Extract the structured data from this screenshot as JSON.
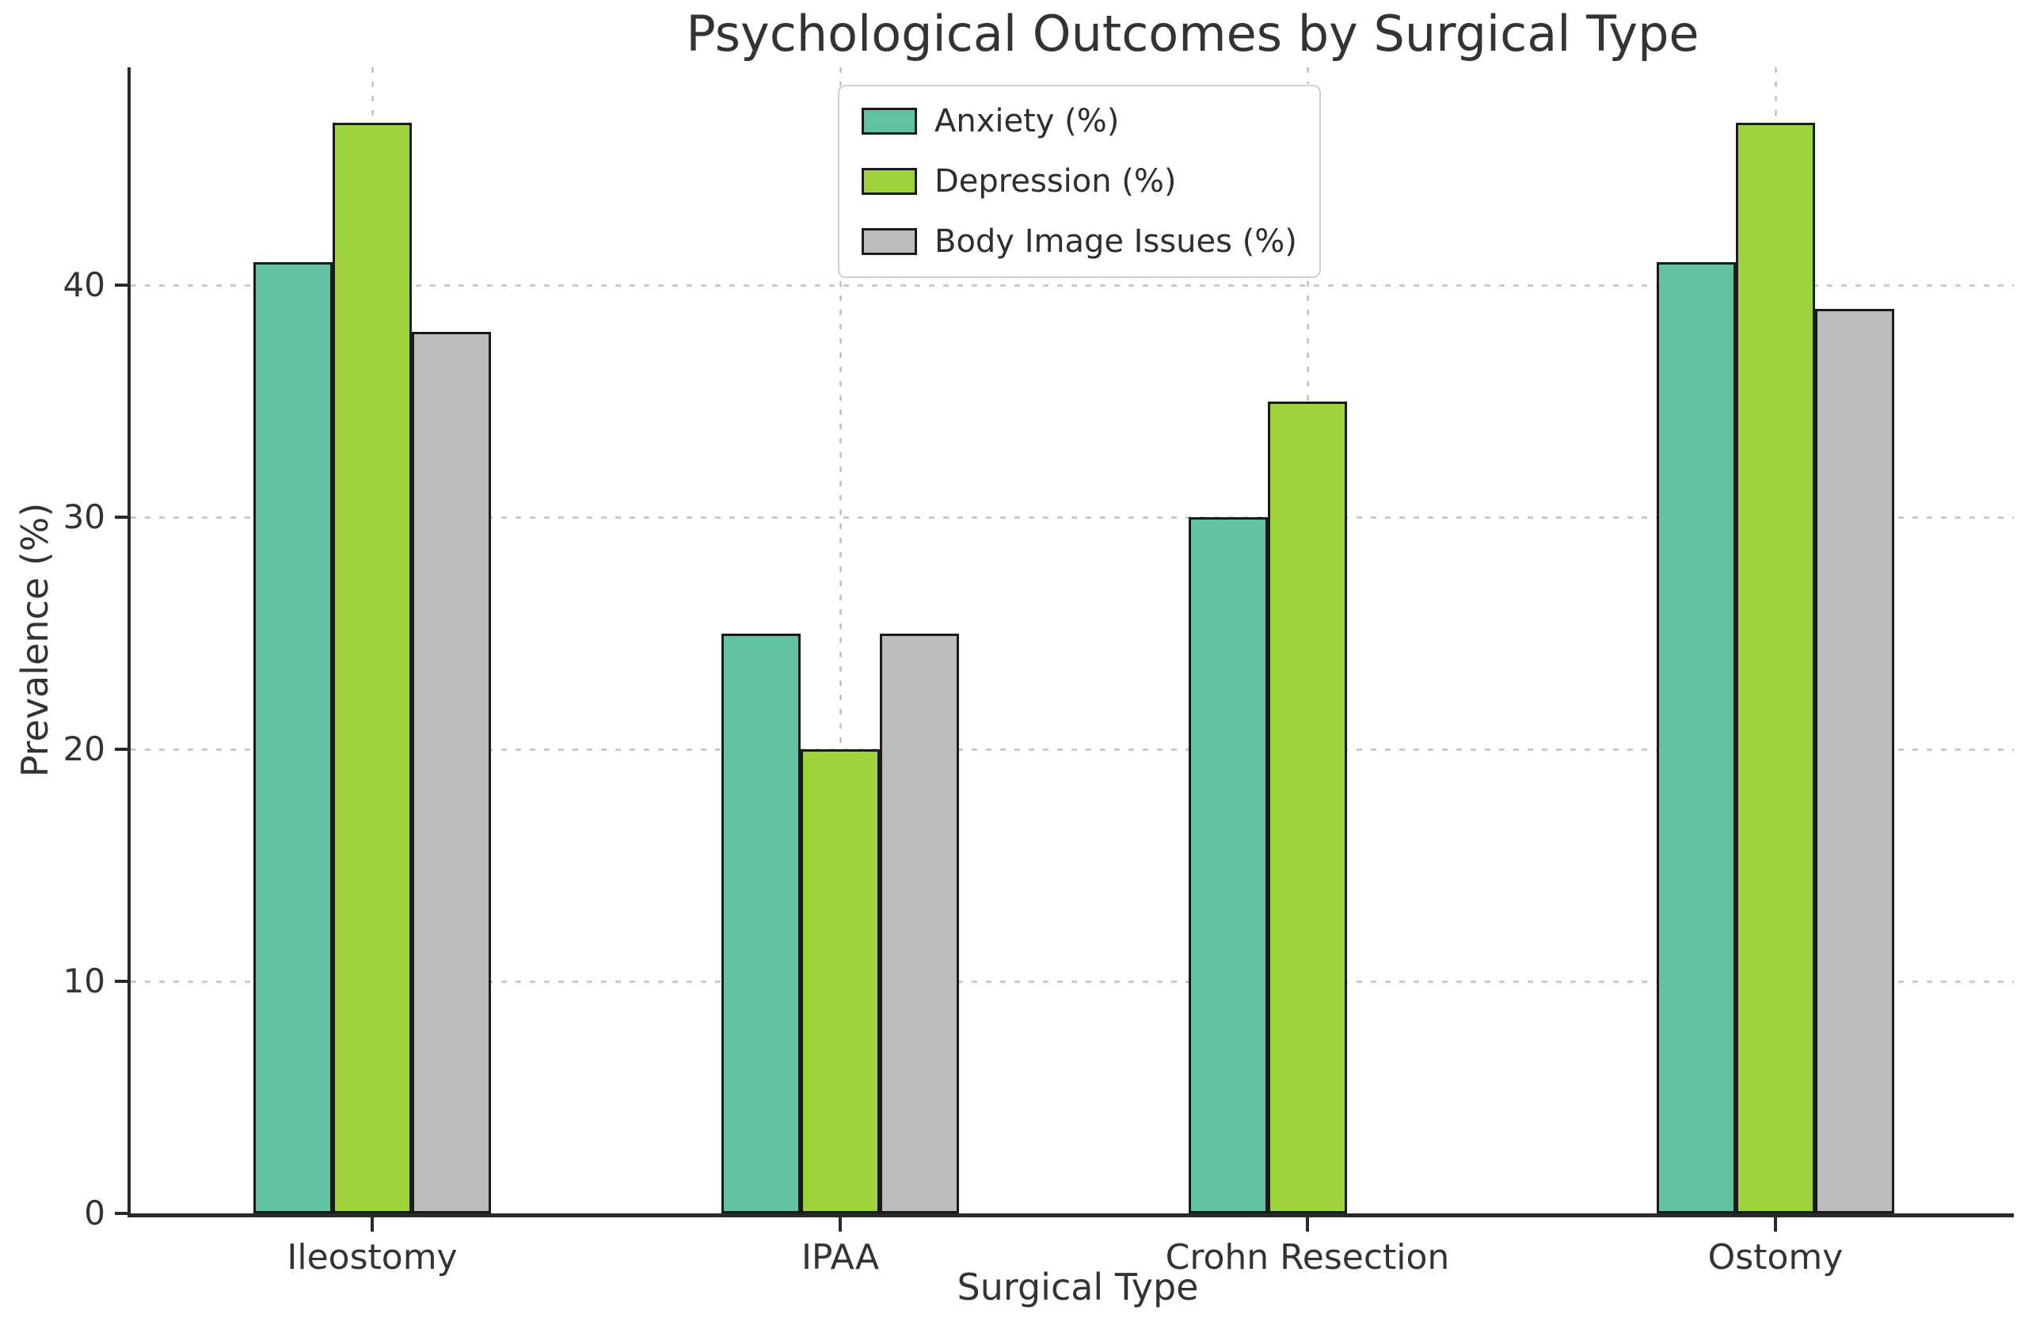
{
  "title": "Psychological Outcomes by Surgical Type",
  "chart_data": {
    "type": "bar",
    "categories": [
      "Ileostomy",
      "IPAA",
      "Crohn Resection",
      "Ostomy"
    ],
    "series": [
      {
        "name": "Anxiety (%)",
        "color": "#60c1a3",
        "values": [
          41,
          25,
          30,
          41
        ]
      },
      {
        "name": "Depression (%)",
        "color": "#9ed33c",
        "values": [
          47,
          20,
          35,
          47
        ]
      },
      {
        "name": "Body Image Issues (%)",
        "color": "#bdbdbd",
        "values": [
          38,
          25,
          0,
          39
        ]
      }
    ],
    "title": "Psychological Outcomes by Surgical Type",
    "xlabel": "Surgical Type",
    "ylabel": "Prevalence (%)",
    "ylim": [
      0,
      49.4
    ],
    "yticks": [
      0,
      10,
      20,
      30,
      40
    ],
    "grid": "dotted gridlines on both axes",
    "legend_position": "upper center",
    "note": "No Body Image Issues bar is drawn for Crohn Resection (value 0)",
    "colors": {
      "bar_edge": "#1a1a1a",
      "grid": "#c9c9c9",
      "spine": "#2a2a2a",
      "text": "#333333",
      "legend_border": "#d0d0d0"
    }
  }
}
